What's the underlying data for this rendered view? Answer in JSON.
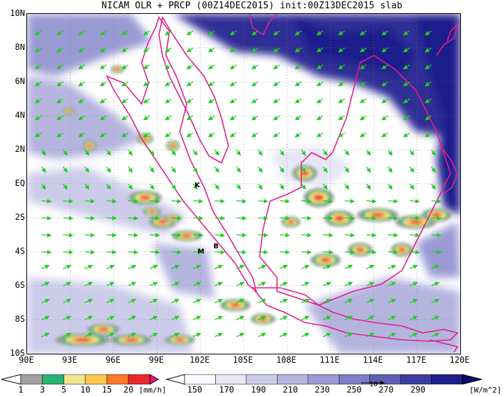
{
  "title": "NICAM OLR + PRCP (00Z14DEC2015) init:00Z13DEC2015 slab",
  "map": {
    "lon_range": [
      90,
      120
    ],
    "lat_range": [
      -10,
      10
    ],
    "y_ticks": [
      "10N",
      "8N",
      "6N",
      "4N",
      "2N",
      "EQ",
      "2S",
      "4S",
      "6S",
      "8S",
      "10S"
    ],
    "x_ticks": [
      "90E",
      "93E",
      "96E",
      "99E",
      "102E",
      "105E",
      "108E",
      "111E",
      "114E",
      "117E",
      "120E"
    ],
    "city_markers": [
      {
        "label": "K",
        "lon": 101.6,
        "lat": -0.2
      },
      {
        "label": "M",
        "lon": 101.8,
        "lat": -4.1
      },
      {
        "label": "B",
        "lon": 102.9,
        "lat": -3.8
      }
    ],
    "coast_color": "#e0208a",
    "wind_arrow_color": "#22cc22",
    "grid_style": "dotted"
  },
  "precip_colorbar": {
    "labels": [
      "1",
      "3",
      "5",
      "10",
      "15",
      "20"
    ],
    "unit": "[mm/h]",
    "colors": [
      "#a0a0a0",
      "#28b474",
      "#f0e68c",
      "#ffc850",
      "#ff7828",
      "#e82828",
      "#e6147c"
    ]
  },
  "olr_colorbar": {
    "labels": [
      "150",
      "170",
      "190",
      "210",
      "230",
      "250",
      "270",
      "290"
    ],
    "unit": "[W/m^2]",
    "colors": [
      "#fafaff",
      "#e6e6f5",
      "#ccccea",
      "#b4b4df",
      "#9a9ad4",
      "#7e7ec6",
      "#5e5eb4",
      "#3c3ca0",
      "#1e1e8c",
      "#0a0a6e"
    ],
    "reference_vector_label": "10"
  }
}
